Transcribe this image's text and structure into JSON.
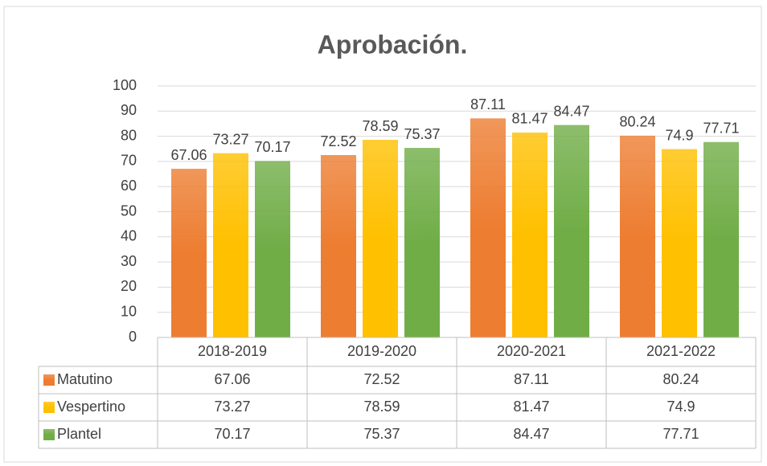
{
  "chart_data": {
    "type": "bar",
    "title": "Aprobación.",
    "categories": [
      "2018-2019",
      "2019-2020",
      "2020-2021",
      "2021-2022"
    ],
    "series": [
      {
        "name": "Matutino",
        "color": "#ed7d31",
        "values": [
          67.06,
          72.52,
          87.11,
          80.24
        ]
      },
      {
        "name": "Vespertino",
        "color": "#ffc000",
        "values": [
          73.27,
          78.59,
          81.47,
          74.9
        ]
      },
      {
        "name": "Plantel",
        "color": "#70ad47",
        "values": [
          70.17,
          75.37,
          84.47,
          77.71
        ]
      }
    ],
    "ylim": [
      0,
      100
    ],
    "yticks": [
      0,
      10,
      20,
      30,
      40,
      50,
      60,
      70,
      80,
      90,
      100
    ],
    "grid": true
  }
}
